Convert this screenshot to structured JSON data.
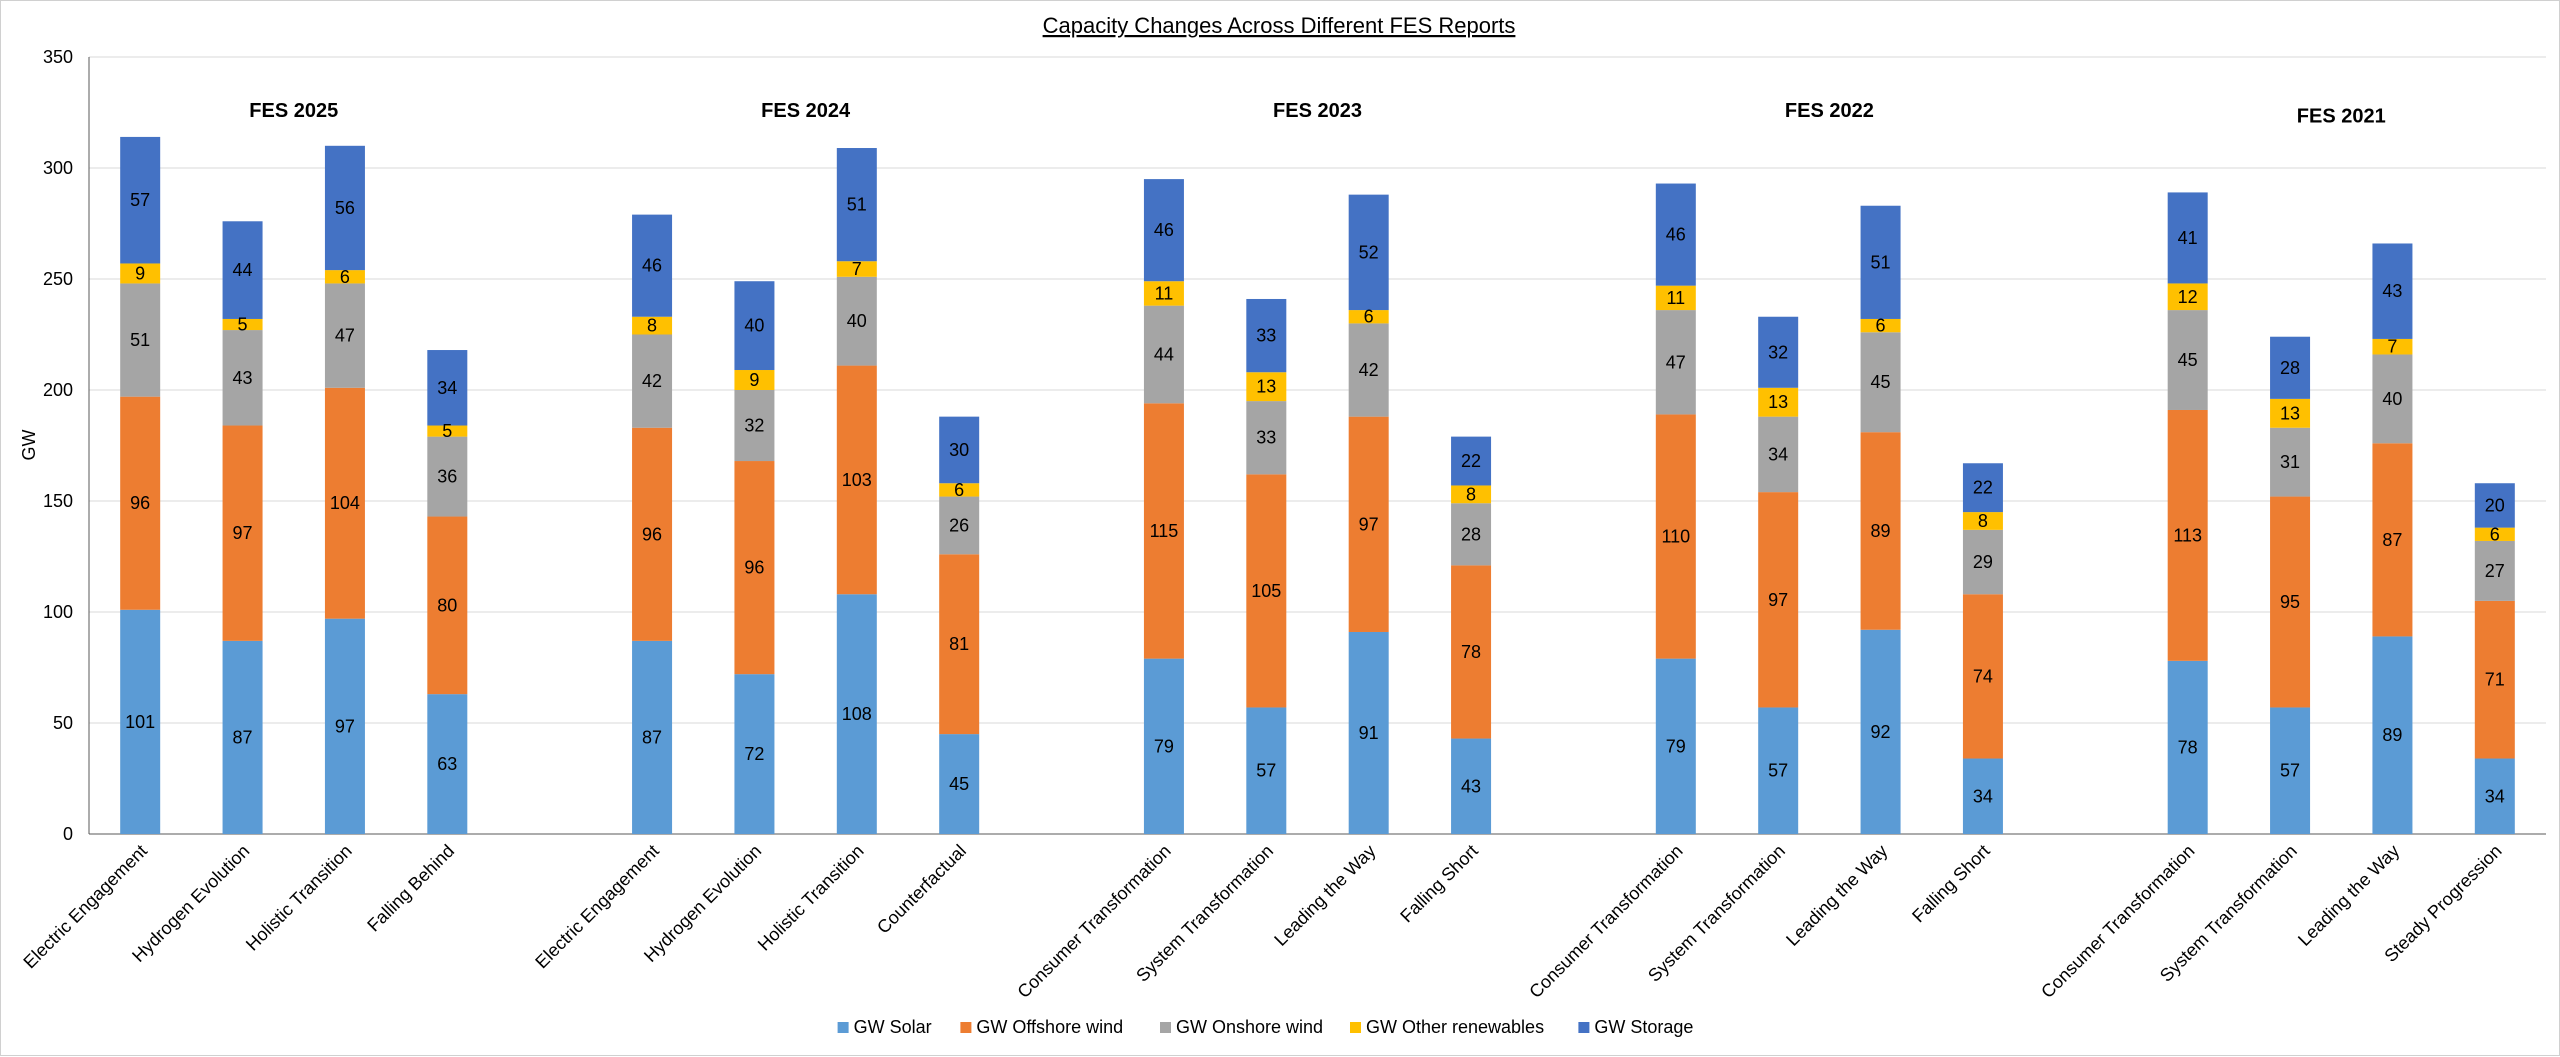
{
  "chart_data": {
    "type": "stacked-bar",
    "title": "Capacity Changes Across Different FES Reports",
    "ylabel": "GW",
    "xlabel": "",
    "ylim": [
      0,
      350
    ],
    "yticks": [
      0,
      50,
      100,
      150,
      200,
      250,
      300,
      350
    ],
    "grid": true,
    "legend_position": "bottom",
    "series": [
      {
        "name": "GW Solar",
        "color": "#5b9bd5"
      },
      {
        "name": "GW Offshore wind",
        "color": "#ed7d31"
      },
      {
        "name": "GW Onshore wind",
        "color": "#a5a5a5"
      },
      {
        "name": "GW Other renewables",
        "color": "#ffc000"
      },
      {
        "name": "GW Storage",
        "color": "#4472c4"
      }
    ],
    "groups": [
      {
        "label": "FES 2025",
        "bars": [
          {
            "category": "Electric Engagement",
            "values": [
              101,
              96,
              51,
              9,
              57
            ]
          },
          {
            "category": "Hydrogen Evolution",
            "values": [
              87,
              97,
              43,
              5,
              44
            ]
          },
          {
            "category": "Holistic Transition",
            "values": [
              97,
              104,
              47,
              6,
              56
            ]
          },
          {
            "category": "Falling Behind",
            "values": [
              63,
              80,
              36,
              5,
              34
            ]
          }
        ]
      },
      {
        "label": "FES 2024",
        "bars": [
          {
            "category": "Electric Engagement",
            "values": [
              87,
              96,
              42,
              8,
              46
            ]
          },
          {
            "category": "Hydrogen Evolution",
            "values": [
              72,
              96,
              32,
              9,
              40
            ]
          },
          {
            "category": "Holistic Transition",
            "values": [
              108,
              103,
              40,
              7,
              51
            ]
          },
          {
            "category": "Counterfactual",
            "values": [
              45,
              81,
              26,
              6,
              30
            ]
          }
        ]
      },
      {
        "label": "FES 2023",
        "bars": [
          {
            "category": "Consumer Transformation",
            "values": [
              79,
              115,
              44,
              11,
              46
            ]
          },
          {
            "category": "System Transformation",
            "values": [
              57,
              105,
              33,
              13,
              33
            ]
          },
          {
            "category": "Leading the Way",
            "values": [
              91,
              97,
              42,
              6,
              52
            ]
          },
          {
            "category": "Falling Short",
            "values": [
              43,
              78,
              28,
              8,
              22
            ]
          }
        ]
      },
      {
        "label": "FES 2022",
        "bars": [
          {
            "category": "Consumer Transformation",
            "values": [
              79,
              110,
              47,
              11,
              46
            ]
          },
          {
            "category": "System Transformation",
            "values": [
              57,
              97,
              34,
              13,
              32
            ]
          },
          {
            "category": "Leading the Way",
            "values": [
              92,
              89,
              45,
              6,
              51
            ]
          },
          {
            "category": "Falling Short",
            "values": [
              34,
              74,
              29,
              8,
              22
            ]
          }
        ]
      },
      {
        "label": "FES 2021",
        "bars": [
          {
            "category": "Consumer Transformation",
            "values": [
              78,
              113,
              45,
              12,
              41
            ]
          },
          {
            "category": "System Transformation",
            "values": [
              57,
              95,
              31,
              13,
              28
            ]
          },
          {
            "category": "Leading the Way",
            "values": [
              89,
              87,
              40,
              7,
              43
            ]
          },
          {
            "category": "Steady Progression",
            "values": [
              34,
              71,
              27,
              6,
              20
            ]
          }
        ]
      }
    ]
  }
}
